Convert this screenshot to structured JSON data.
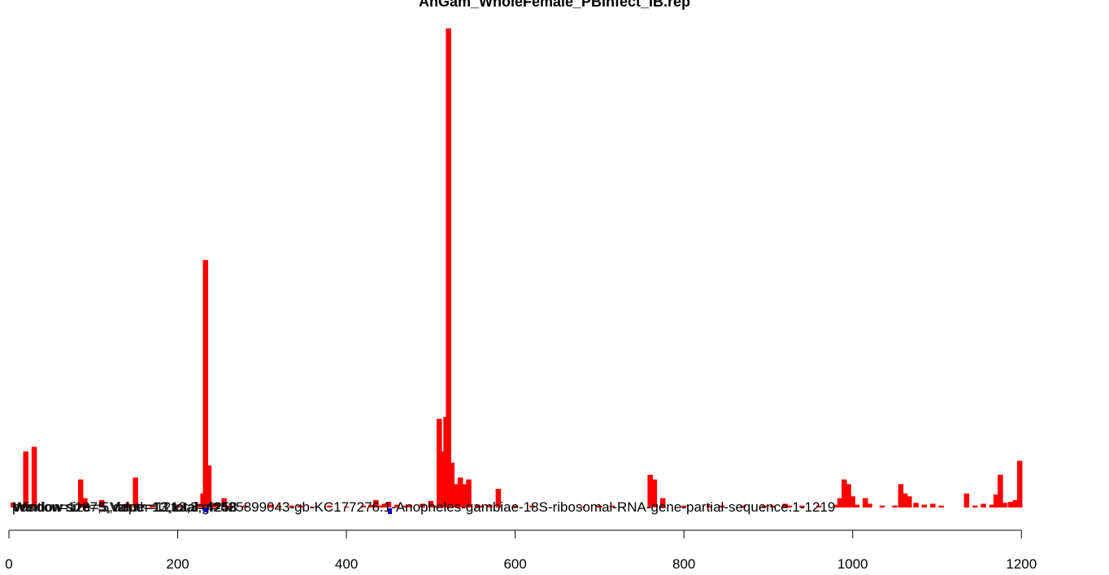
{
  "chart_data": {
    "type": "bar",
    "title": "AnGam_WholeFemale_PBinfect_IB.rep",
    "xlabel": "",
    "ylabel": "",
    "xlim": [
      0,
      1219
    ],
    "x_ticks": [
      0,
      200,
      400,
      600,
      800,
      1000,
      1200
    ],
    "x_tick_labels": [
      "0",
      "200",
      "400",
      "600",
      "800",
      "1000",
      "1200"
    ],
    "bar_color": "#ff0000",
    "grid": false,
    "legend": "none",
    "overlapping_labels": [
      "position=1187,5,depth=1213,3,gi=425899043-gb-KC177276.1-Anopheles-gambiae-18S-ribosomal-RNA-gene-partial-sequence.1-1219",
      "Window size=5,Value=13,total=4258",
      "Window size=5,Value=12,total=4258",
      "Window size=5,Value=13,total=4258"
    ],
    "series": [
      {
        "values": [
          [
            5,
            5
          ],
          [
            15,
            3
          ],
          [
            20,
            60
          ],
          [
            30,
            65
          ],
          [
            85,
            30
          ],
          [
            90,
            10
          ],
          [
            110,
            8
          ],
          [
            140,
            4
          ],
          [
            150,
            32
          ],
          [
            170,
            2
          ],
          [
            200,
            2
          ],
          [
            225,
            4
          ],
          [
            230,
            15
          ],
          [
            233,
            265
          ],
          [
            237,
            45
          ],
          [
            240,
            3
          ],
          [
            245,
            5
          ],
          [
            255,
            10
          ],
          [
            260,
            2
          ],
          [
            280,
            2
          ],
          [
            310,
            3
          ],
          [
            320,
            2
          ],
          [
            335,
            2
          ],
          [
            345,
            2
          ],
          [
            360,
            1
          ],
          [
            380,
            2
          ],
          [
            400,
            1
          ],
          [
            420,
            2
          ],
          [
            430,
            3
          ],
          [
            435,
            8
          ],
          [
            440,
            2
          ],
          [
            445,
            4
          ],
          [
            450,
            6
          ],
          [
            460,
            3
          ],
          [
            470,
            2
          ],
          [
            475,
            3
          ],
          [
            490,
            4
          ],
          [
            500,
            7
          ],
          [
            505,
            2
          ],
          [
            510,
            95
          ],
          [
            513,
            60
          ],
          [
            518,
            97
          ],
          [
            521,
            513
          ],
          [
            525,
            48
          ],
          [
            530,
            25
          ],
          [
            535,
            32
          ],
          [
            540,
            25
          ],
          [
            545,
            30
          ],
          [
            555,
            3
          ],
          [
            560,
            2
          ],
          [
            570,
            3
          ],
          [
            580,
            20
          ],
          [
            600,
            2
          ],
          [
            620,
            2
          ],
          [
            680,
            1
          ],
          [
            700,
            2
          ],
          [
            715,
            2
          ],
          [
            760,
            35
          ],
          [
            765,
            30
          ],
          [
            775,
            10
          ],
          [
            800,
            2
          ],
          [
            830,
            2
          ],
          [
            845,
            2
          ],
          [
            870,
            2
          ],
          [
            895,
            2
          ],
          [
            905,
            2
          ],
          [
            920,
            4
          ],
          [
            925,
            2
          ],
          [
            940,
            2
          ],
          [
            960,
            2
          ],
          [
            980,
            3
          ],
          [
            985,
            10
          ],
          [
            990,
            30
          ],
          [
            995,
            25
          ],
          [
            1000,
            12
          ],
          [
            1005,
            3
          ],
          [
            1015,
            10
          ],
          [
            1020,
            4
          ],
          [
            1035,
            2
          ],
          [
            1050,
            2
          ],
          [
            1057,
            25
          ],
          [
            1062,
            15
          ],
          [
            1067,
            12
          ],
          [
            1075,
            5
          ],
          [
            1085,
            3
          ],
          [
            1095,
            4
          ],
          [
            1105,
            2
          ],
          [
            1135,
            15
          ],
          [
            1145,
            2
          ],
          [
            1155,
            4
          ],
          [
            1165,
            3
          ],
          [
            1170,
            14
          ],
          [
            1175,
            35
          ],
          [
            1180,
            5
          ],
          [
            1187,
            6
          ],
          [
            1193,
            8
          ],
          [
            1198,
            50
          ]
        ]
      }
    ]
  }
}
